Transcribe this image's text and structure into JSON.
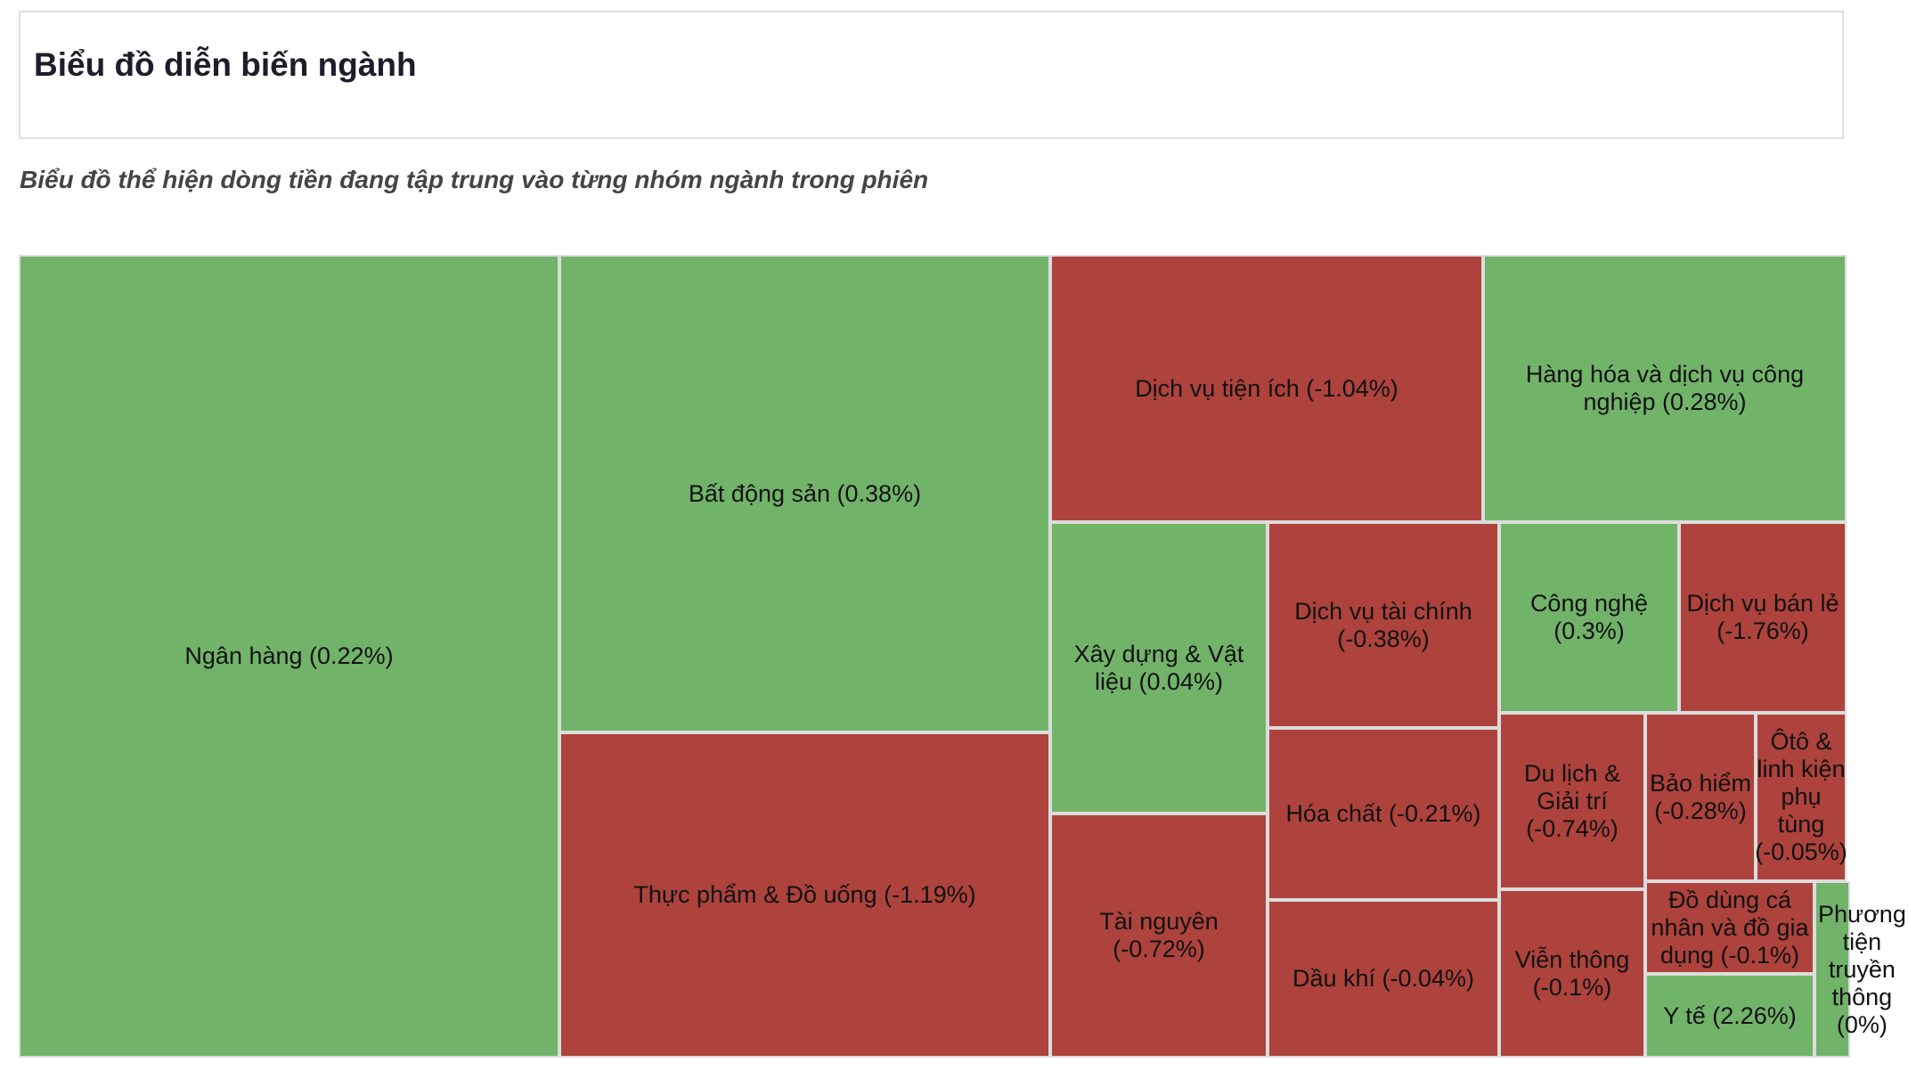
{
  "header": {
    "title": "Biểu đồ diễn biến ngành",
    "subtitle": "Biểu đồ thể hiện dòng tiền đang tập trung vào từng nhóm ngành trong phiên"
  },
  "colors": {
    "positive": "#72b36a",
    "negative": "#ad433c"
  },
  "chart_data": {
    "type": "treemap",
    "items": [
      {
        "label": "Ngân hàng (0.22%)",
        "name": "Ngân hàng",
        "change_pct": 0.22
      },
      {
        "label": "Bất động sản (0.38%)",
        "name": "Bất động sản",
        "change_pct": 0.38
      },
      {
        "label": "Thực phẩm & Đồ uống (-1.19%)",
        "name": "Thực phẩm & Đồ uống",
        "change_pct": -1.19
      },
      {
        "label": "Dịch vụ tiện ích (-1.04%)",
        "name": "Dịch vụ tiện ích",
        "change_pct": -1.04
      },
      {
        "label": "Hàng hóa và dịch vụ công nghiệp (0.28%)",
        "name": "Hàng hóa và dịch vụ công nghiệp",
        "change_pct": 0.28
      },
      {
        "label": "Xây dựng & Vật liệu (0.04%)",
        "name": "Xây dựng & Vật liệu",
        "change_pct": 0.04
      },
      {
        "label": "Dịch vụ tài chính (-0.38%)",
        "name": "Dịch vụ tài chính",
        "change_pct": -0.38
      },
      {
        "label": "Công nghệ (0.3%)",
        "name": "Công nghệ",
        "change_pct": 0.3
      },
      {
        "label": "Dịch vụ bán lẻ (-1.76%)",
        "name": "Dịch vụ bán lẻ",
        "change_pct": -1.76
      },
      {
        "label": "Tài nguyên (-0.72%)",
        "name": "Tài nguyên",
        "change_pct": -0.72
      },
      {
        "label": "Hóa chất (-0.21%)",
        "name": "Hóa chất",
        "change_pct": -0.21
      },
      {
        "label": "Dầu khí (-0.04%)",
        "name": "Dầu khí",
        "change_pct": -0.04
      },
      {
        "label": "Du lịch & Giải trí (-0.74%)",
        "name": "Du lịch & Giải trí",
        "change_pct": -0.74
      },
      {
        "label": "Viễn thông (-0.1%)",
        "name": "Viễn thông",
        "change_pct": -0.1
      },
      {
        "label": "Bảo hiểm (-0.28%)",
        "name": "Bảo hiểm",
        "change_pct": -0.28
      },
      {
        "label": "Ôtô & linh kiện phụ tùng (-0.05%)",
        "name": "Ôtô & linh kiện phụ tùng",
        "change_pct": -0.05
      },
      {
        "label": "Đồ dùng cá nhân và đồ gia dụng (-0.1%)",
        "name": "Đồ dùng cá nhân và đồ gia dụng",
        "change_pct": -0.1
      },
      {
        "label": "Y tế (2.26%)",
        "name": "Y tế",
        "change_pct": 2.26
      },
      {
        "label": "Phương tiện truyền thông (0%)",
        "name": "Phương tiện truyền thông",
        "change_pct": 0
      }
    ]
  }
}
